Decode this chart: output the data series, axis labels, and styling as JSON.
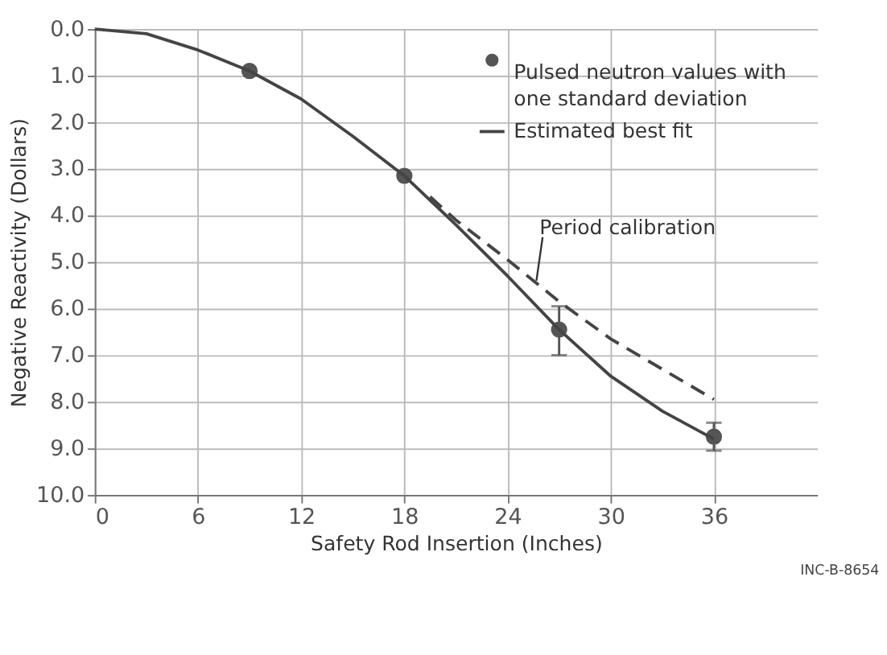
{
  "chart_data": {
    "type": "scatter",
    "xlabel": "Safety Rod Insertion (Inches)",
    "ylabel": "Negative Reactivity (Dollars)",
    "xlim": [
      0,
      42
    ],
    "xticks": [
      0,
      6,
      12,
      18,
      24,
      30,
      36
    ],
    "ylim": [
      10,
      0
    ],
    "yticks": [
      {
        "value": 0,
        "label": "0.0"
      },
      {
        "value": 1,
        "label": "1.0"
      },
      {
        "value": 2,
        "label": "2.0"
      },
      {
        "value": 3,
        "label": "3.0"
      },
      {
        "value": 4,
        "label": "4.0"
      },
      {
        "value": 5,
        "label": "5.0"
      },
      {
        "value": 6,
        "label": "6.0"
      },
      {
        "value": 7,
        "label": "7.0"
      },
      {
        "value": 8,
        "label": "8.0"
      },
      {
        "value": 9,
        "label": "9.0"
      },
      {
        "value": 10,
        "label": "10.0"
      }
    ],
    "grid": true,
    "legend": "top right",
    "series": [
      {
        "type": "scatter",
        "name": "Pulsed neutron values with one standard deviation",
        "color": "#555555",
        "marker": "circle",
        "x": [
          9,
          18,
          27,
          36
        ],
        "values": [
          0.9,
          3.15,
          6.45,
          8.75
        ],
        "errors": [
          null,
          null,
          [
            5.95,
            7.0
          ],
          [
            8.45,
            9.05
          ]
        ]
      },
      {
        "type": "line",
        "name": "Estimated best fit",
        "color": "#444444",
        "line_style": "solid",
        "x": [
          0,
          3,
          6,
          9,
          12,
          15,
          18,
          21,
          24,
          27,
          30,
          33,
          36
        ],
        "values": [
          0,
          0.1,
          0.45,
          0.9,
          1.5,
          2.3,
          3.15,
          4.2,
          5.3,
          6.45,
          7.45,
          8.2,
          8.8
        ]
      },
      {
        "type": "line",
        "color": "#444444",
        "line_style": "dashed",
        "x": [
          19.5,
          21,
          24,
          27,
          30,
          33,
          36
        ],
        "values": [
          3.6,
          4.1,
          4.95,
          5.85,
          6.65,
          7.3,
          7.95
        ]
      }
    ],
    "annotations": [
      {
        "text": "Period calibration",
        "x": 25.5,
        "y": 5.4
      },
      "INC-B-8654"
    ]
  }
}
